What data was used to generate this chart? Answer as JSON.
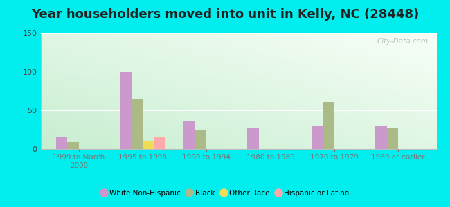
{
  "title": "Year householders moved into unit in Kelly, NC (28448)",
  "categories": [
    "1999 to March\n2000",
    "1995 to 1998",
    "1990 to 1994",
    "1980 to 1989",
    "1970 to 1979",
    "1969 or earlier"
  ],
  "series": {
    "White Non-Hispanic": [
      15,
      100,
      36,
      28,
      30,
      30
    ],
    "Black": [
      9,
      65,
      25,
      0,
      61,
      28
    ],
    "Other Race": [
      0,
      10,
      0,
      0,
      0,
      0
    ],
    "Hispanic or Latino": [
      0,
      15,
      0,
      0,
      0,
      0
    ]
  },
  "colors": {
    "White Non-Hispanic": "#cc99cc",
    "Black": "#aabb88",
    "Other Race": "#eedd55",
    "Hispanic or Latino": "#ffaaaa"
  },
  "ylim": [
    0,
    150
  ],
  "yticks": [
    0,
    50,
    100,
    150
  ],
  "outer_background": "#00eeee",
  "title_fontsize": 13,
  "bar_width": 0.18,
  "watermark": "City-Data.com"
}
